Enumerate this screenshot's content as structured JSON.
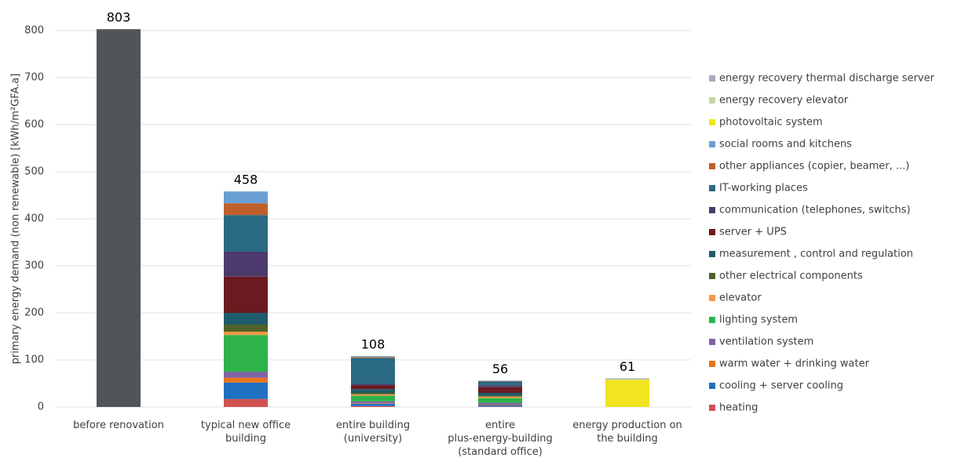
{
  "chart_data": {
    "type": "stacked-bar",
    "y_label": "primary energy demand (non renewable) [kWh/m²GFA.a]",
    "categories": [
      "before renovation",
      "typical new office\nbuilding",
      "entire building\n(university)",
      "entire\nplus-energy-building\n(standard office)",
      "energy production on\nthe building"
    ],
    "totals": [
      803,
      458,
      108,
      56,
      61
    ],
    "ylim": [
      0,
      800
    ],
    "yticks": [
      0,
      100,
      200,
      300,
      400,
      500,
      600,
      700,
      800
    ],
    "grid": true,
    "legend": "right",
    "series": [
      {
        "color": "#505558",
        "values": [
          803,
          null,
          null,
          null,
          null
        ]
      },
      {
        "name": "heating",
        "color": "#cf5350",
        "values": [
          null,
          17,
          2,
          1,
          null
        ]
      },
      {
        "name": "cooling + server cooling",
        "color": "#1f70c1",
        "values": [
          null,
          35,
          5,
          3,
          null
        ]
      },
      {
        "name": "warm water + drinking water",
        "color": "#e8731a",
        "values": [
          null,
          10,
          1,
          1,
          null
        ]
      },
      {
        "name": "ventilation system",
        "color": "#8064a2",
        "values": [
          null,
          13,
          4,
          4,
          null
        ]
      },
      {
        "name": "lighting system",
        "color": "#2db34a",
        "values": [
          null,
          78,
          12,
          10,
          null
        ]
      },
      {
        "name": "elevator",
        "color": "#f79646",
        "values": [
          null,
          7,
          3,
          3,
          null
        ]
      },
      {
        "name": "other electrical components",
        "color": "#4f6228",
        "values": [
          null,
          15,
          3,
          2,
          null
        ]
      },
      {
        "name": "measurement , control and regulation",
        "color": "#1e5c6b",
        "values": [
          null,
          25,
          8,
          6,
          null
        ]
      },
      {
        "name": "server + UPS",
        "color": "#6b1a1f",
        "values": [
          null,
          77,
          8,
          12,
          null
        ]
      },
      {
        "name": "communication (telephones, switchs)",
        "color": "#4b3a6b",
        "values": [
          null,
          53,
          3,
          4,
          null
        ]
      },
      {
        "name": "IT-working places",
        "color": "#2a6b82",
        "values": [
          null,
          78,
          55,
          8,
          null
        ]
      },
      {
        "name": "other appliances (copier, beamer, ...)",
        "color": "#c0602a",
        "values": [
          null,
          25,
          2,
          1,
          null
        ]
      },
      {
        "name": "social rooms and kitchens",
        "color": "#6a9fd3",
        "values": [
          null,
          25,
          2,
          1,
          null
        ]
      },
      {
        "name": "photovoltaic system",
        "color": "#f0e51f",
        "values": [
          null,
          null,
          null,
          null,
          58
        ]
      },
      {
        "name": "energy recovery elevator",
        "color": "#c4d6a0",
        "values": [
          null,
          null,
          null,
          null,
          1
        ]
      },
      {
        "name": "energy recovery thermal discharge server",
        "color": "#a5acbb",
        "values": [
          null,
          null,
          null,
          null,
          2
        ]
      }
    ]
  }
}
